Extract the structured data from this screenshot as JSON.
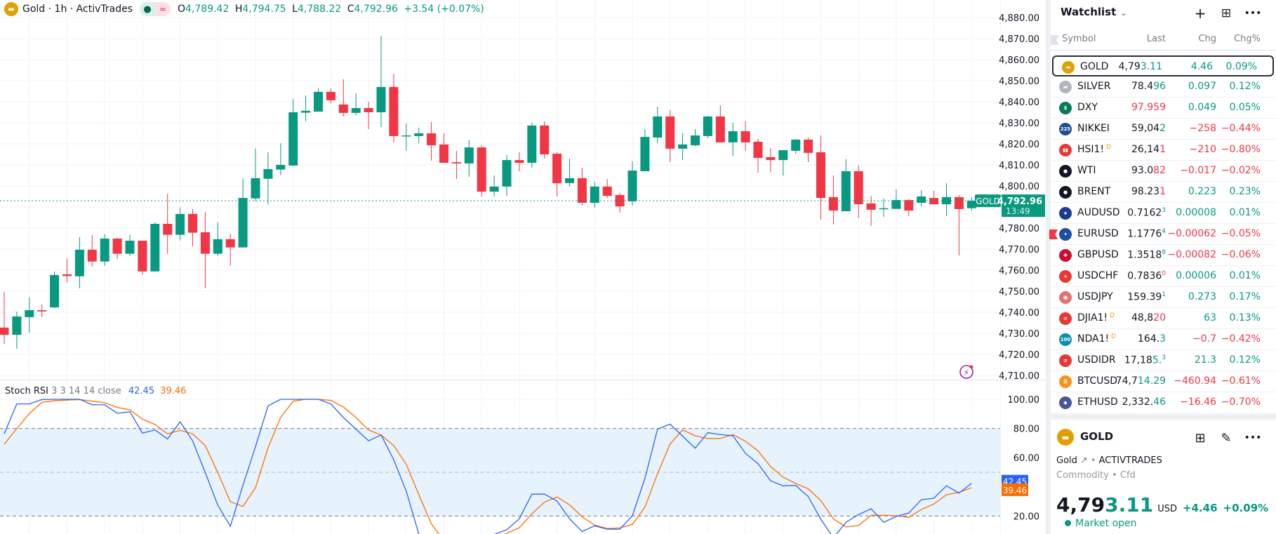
{
  "header": {
    "symbol_title": "Gold · 1h · ActivTrades",
    "status_dot": "●",
    "status_approx": "≈",
    "open_label": "O",
    "open": "4,789.42",
    "high_label": "H",
    "high": "4,794.75",
    "low_label": "L",
    "low": "4,788.22",
    "close_label": "C",
    "close": "4,792.96",
    "change": "+3.54 (+0.07%)"
  },
  "colors": {
    "up": "#089981",
    "down": "#f23645",
    "k_line": "#2962ff",
    "d_line": "#ff6d00",
    "band": "#e3f2fd",
    "gold": "#e0a100"
  },
  "price_axis": {
    "labels": [
      "4,880.00",
      "4,870.00",
      "4,860.00",
      "4,850.00",
      "4,840.00",
      "4,830.00",
      "4,820.00",
      "4,810.00",
      "4,800.00",
      "4,790.00",
      "4,780.00",
      "4,770.00",
      "4,760.00",
      "4,750.00",
      "4,740.00",
      "4,730.00",
      "4,720.00",
      "4,710.00"
    ],
    "hidden_labels": [
      "4,790.00"
    ],
    "current_symbol_tag": "GOLD",
    "current_price": "4,792.96",
    "countdown": "13:49"
  },
  "chart_data": [
    {
      "type": "candlestick",
      "title": "Gold · 1h · ActivTrades",
      "ylim": [
        4710,
        4880
      ],
      "grid": true,
      "last_price": 4792.96,
      "ohlc": [
        [
          4732.7,
          4749.7,
          4725,
          4729.3
        ],
        [
          4729.3,
          4740.3,
          4722.7,
          4738
        ],
        [
          4737.7,
          4747,
          4730.3,
          4741
        ],
        [
          4741,
          4743.7,
          4737.7,
          4740.4
        ],
        [
          4742.3,
          4759.4,
          4742,
          4757.7
        ],
        [
          4758,
          4765.6,
          4754.1,
          4757.2
        ],
        [
          4757.1,
          4775.7,
          4751.4,
          4769.7
        ],
        [
          4769.7,
          4776.7,
          4761.7,
          4764.1
        ],
        [
          4764.1,
          4777,
          4762.1,
          4775
        ],
        [
          4775,
          4775.3,
          4765.4,
          4767.8
        ],
        [
          4767.8,
          4776.7,
          4766.8,
          4774
        ],
        [
          4774,
          4774,
          4757.8,
          4759.4
        ],
        [
          4759.4,
          4782.7,
          4759.4,
          4782
        ],
        [
          4782,
          4796.3,
          4767.8,
          4776.8
        ],
        [
          4776.8,
          4789.7,
          4774.1,
          4786.7
        ],
        [
          4786.7,
          4789,
          4771.4,
          4777.8
        ],
        [
          4778,
          4787.7,
          4751.4,
          4767.8
        ],
        [
          4767.8,
          4782.7,
          4766.8,
          4774.7
        ],
        [
          4774.7,
          4777.3,
          4762.1,
          4770.8
        ],
        [
          4770.8,
          4803.7,
          4770.8,
          4794.3
        ],
        [
          4794.1,
          4817.7,
          4792.8,
          4803.7
        ],
        [
          4803.4,
          4816,
          4791.1,
          4808
        ],
        [
          4807.8,
          4820.3,
          4805.1,
          4810
        ],
        [
          4809.7,
          4841.3,
          4809.4,
          4835
        ],
        [
          4834.8,
          4843,
          4830.7,
          4835.7
        ],
        [
          4835.3,
          4846.3,
          4835.3,
          4844.7
        ],
        [
          4844.7,
          4846.3,
          4839.3,
          4840.7
        ],
        [
          4838.7,
          4850.7,
          4833,
          4834.7
        ],
        [
          4834.7,
          4844,
          4833.7,
          4837
        ],
        [
          4837,
          4840,
          4827,
          4835
        ],
        [
          4835,
          4871.3,
          4828,
          4847
        ],
        [
          4847,
          4853.3,
          4820.7,
          4823.7
        ],
        [
          4823.8,
          4829.7,
          4816.7,
          4824
        ],
        [
          4823.7,
          4827.7,
          4820.3,
          4825
        ],
        [
          4825,
          4830.3,
          4812,
          4819.3
        ],
        [
          4819.7,
          4825,
          4811,
          4811
        ],
        [
          4811.3,
          4816.7,
          4803.3,
          4810.7
        ],
        [
          4810.7,
          4821.7,
          4804.3,
          4818.3
        ],
        [
          4818.3,
          4819.3,
          4795,
          4797.3
        ],
        [
          4797.3,
          4805,
          4795,
          4799.7
        ],
        [
          4799.7,
          4814.7,
          4795.3,
          4812.3
        ],
        [
          4812.3,
          4816,
          4807,
          4811
        ],
        [
          4811,
          4830,
          4808.7,
          4828.7
        ],
        [
          4828.7,
          4830.7,
          4813,
          4815
        ],
        [
          4815.3,
          4816,
          4795,
          4801.3
        ],
        [
          4801.4,
          4813,
          4799.7,
          4803.7
        ],
        [
          4803.7,
          4808.7,
          4790.7,
          4792
        ],
        [
          4792,
          4802,
          4789.7,
          4799.7
        ],
        [
          4799.7,
          4803.3,
          4794.3,
          4795.3
        ],
        [
          4795.7,
          4796.7,
          4787.3,
          4790.3
        ],
        [
          4792.7,
          4811.7,
          4790.7,
          4807.3
        ],
        [
          4807,
          4827,
          4807,
          4823.3
        ],
        [
          4823,
          4837.7,
          4820.3,
          4833
        ],
        [
          4833,
          4836,
          4811.3,
          4817.7
        ],
        [
          4817.7,
          4825,
          4812.3,
          4819.7
        ],
        [
          4819.3,
          4827,
          4819,
          4824
        ],
        [
          4823.7,
          4833.3,
          4822.7,
          4833
        ],
        [
          4833,
          4838.3,
          4820.7,
          4820.7
        ],
        [
          4820.7,
          4830,
          4814.3,
          4826
        ],
        [
          4826,
          4830.7,
          4816.7,
          4820.7
        ],
        [
          4821,
          4822.3,
          4806.3,
          4813.3
        ],
        [
          4813.7,
          4818,
          4806.7,
          4812.3
        ],
        [
          4812.3,
          4817,
          4805,
          4817
        ],
        [
          4816.7,
          4822.3,
          4815.3,
          4822
        ],
        [
          4822,
          4823,
          4811.3,
          4815.7
        ],
        [
          4816,
          4824,
          4784,
          4794.3
        ],
        [
          4794.7,
          4805,
          4781.7,
          4788.3
        ],
        [
          4788,
          4812.7,
          4788,
          4807
        ],
        [
          4807,
          4809.7,
          4784.8,
          4791.3
        ],
        [
          4791.7,
          4795.3,
          4781.1,
          4788.7
        ],
        [
          4789.2,
          4794,
          4785.3,
          4789.4
        ],
        [
          4789.1,
          4798.3,
          4789.1,
          4793.3
        ],
        [
          4793.3,
          4793.7,
          4785.7,
          4788.3
        ],
        [
          4792,
          4798,
          4790.3,
          4795
        ],
        [
          4794.3,
          4797.7,
          4791.3,
          4791.3
        ],
        [
          4791.3,
          4801.3,
          4785.7,
          4794.7
        ],
        [
          4794.7,
          4795.7,
          4767,
          4789
        ],
        [
          4789.42,
          4794.75,
          4788.22,
          4792.96
        ]
      ]
    },
    {
      "type": "line",
      "title": "Stoch RSI 3 3 14 14 close",
      "ylim": [
        0,
        100
      ],
      "levels": [
        80,
        50,
        20
      ],
      "axis_labels": [
        "100.00",
        "80.00",
        "60.00",
        "20.00"
      ],
      "series": [
        {
          "name": "K",
          "last_label": "42.45",
          "values": [
            76.3,
            96.8,
            96.8,
            99.8,
            100,
            100,
            100,
            96.2,
            96.2,
            90.4,
            91.5,
            76.8,
            79,
            72.8,
            84.6,
            71.5,
            49.8,
            27.4,
            13,
            41,
            67.5,
            95.5,
            100,
            100,
            100,
            100,
            96.8,
            87.5,
            79.5,
            71.5,
            75.5,
            58.6,
            37,
            7.7,
            2,
            0,
            0,
            0,
            3,
            7.4,
            10.6,
            18.1,
            35,
            35,
            30.3,
            18.1,
            9.4,
            13.3,
            11,
            11,
            20.2,
            45.8,
            79.5,
            83,
            74.7,
            66.5,
            77.1,
            75.8,
            75,
            63,
            55.9,
            44.1,
            40.7,
            41,
            33.3,
            17.8,
            5,
            15.7,
            21,
            25,
            15.7,
            19.7,
            22.1,
            31.2,
            32.2,
            40.7,
            35.7,
            42.45
          ]
        },
        {
          "name": "D",
          "last_label": "39.46",
          "values": [
            69.1,
            80,
            90.2,
            97.9,
            99,
            99.5,
            99.8,
            98.7,
            97.6,
            94.4,
            92.8,
            86.4,
            82.7,
            76.3,
            78.7,
            76.3,
            68.3,
            49.8,
            29.8,
            26.6,
            39.4,
            66.7,
            87.5,
            98.7,
            100,
            100,
            99.2,
            94.7,
            87.5,
            79,
            75.5,
            68.3,
            55.4,
            34.6,
            14.6,
            3,
            0,
            0,
            1,
            3,
            8.2,
            12,
            21.5,
            29.5,
            33,
            27.7,
            19.4,
            13.8,
            11.4,
            11.9,
            14.3,
            26.1,
            49,
            69.4,
            79,
            75,
            73.1,
            73.1,
            75.8,
            71.2,
            64.6,
            53.9,
            46.6,
            42.3,
            38.6,
            30.6,
            18.1,
            12.5,
            13.5,
            20.5,
            20.5,
            20.2,
            19.1,
            24.5,
            28.2,
            34.6,
            36.2,
            39.46
          ]
        }
      ]
    }
  ],
  "rsi_legend": {
    "name": "Stoch RSI",
    "params": "3 3 14 14 close",
    "k": "42.45",
    "d": "39.46"
  },
  "watchlist": {
    "title": "Watchlist",
    "columns": {
      "symbol": "Symbol",
      "last": "Last",
      "chg": "Chg",
      "chgp": "Chg%"
    },
    "rows": [
      {
        "sym": "GOLD",
        "badge": "",
        "icon": "gold-bars",
        "icon_bg": "#e0a100",
        "icon_text": "▬",
        "last": "4,79",
        "hi": "3.11",
        "sup": "",
        "hic": "g",
        "chg": "4.46",
        "chgp": "0.09%",
        "dir": "g",
        "selected": true
      },
      {
        "sym": "SILVER",
        "badge": "",
        "icon": "silver-bars",
        "icon_bg": "#b2b5be",
        "icon_text": "▬",
        "last": "78.4",
        "hi": "96",
        "sup": "",
        "hic": "g",
        "chg": "0.097",
        "chgp": "0.12%",
        "dir": "g"
      },
      {
        "sym": "DXY",
        "badge": "",
        "icon": "dollar",
        "icon_bg": "#0a7a5f",
        "icon_text": "$",
        "last": "",
        "hi": "97.959",
        "sup": "",
        "hic": "r",
        "chg": "0.049",
        "chgp": "0.05%",
        "dir": "g"
      },
      {
        "sym": "NIKKEI",
        "badge": "",
        "icon": "nikkei-225",
        "icon_bg": "#1e4d8c",
        "icon_text": "225",
        "last": "59,04",
        "hi": "2",
        "sup": "",
        "hic": "g",
        "chg": "−258",
        "chgp": "−0.44%",
        "dir": "r"
      },
      {
        "sym": "HSI1!",
        "badge": "D",
        "icon": "hsi",
        "icon_bg": "#e53935",
        "icon_text": "▮▮",
        "last": "26,14",
        "hi": "1",
        "sup": "",
        "hic": "r",
        "chg": "−210",
        "chgp": "−0.80%",
        "dir": "r"
      },
      {
        "sym": "WTI",
        "badge": "",
        "icon": "oil-drop",
        "icon_bg": "#131722",
        "icon_text": "●",
        "last": "93.0",
        "hi": "82",
        "sup": "",
        "hic": "r",
        "chg": "−0.017",
        "chgp": "−0.02%",
        "dir": "r"
      },
      {
        "sym": "BRENT",
        "badge": "",
        "icon": "oil-drop",
        "icon_bg": "#131722",
        "icon_text": "●",
        "last": "98.23",
        "hi": "1",
        "sup": "",
        "hic": "r",
        "chg": "0.223",
        "chgp": "0.23%",
        "dir": "g"
      },
      {
        "sym": "AUDUSD",
        "badge": "",
        "icon": "flag-au-us",
        "icon_bg": "#1a3b8f",
        "icon_text": "★",
        "last": "0.7162",
        "hi": "",
        "sup": "3",
        "hic": "g",
        "chg": "0.00008",
        "chgp": "0.01%",
        "dir": "g"
      },
      {
        "sym": "EURUSD",
        "badge": "",
        "icon": "flag-eu-us",
        "icon_bg": "#1e4fa3",
        "icon_text": "✦",
        "last": "1.1776",
        "hi": "",
        "sup": "4",
        "hic": "g",
        "chg": "−0.00062",
        "chgp": "−0.05%",
        "dir": "r",
        "flagged": true
      },
      {
        "sym": "GBPUSD",
        "badge": "",
        "icon": "flag-gb-us",
        "icon_bg": "#c8102e",
        "icon_text": "✚",
        "last": "1.3518",
        "hi": "",
        "sup": "8",
        "hic": "g",
        "chg": "−0.00082",
        "chgp": "−0.06%",
        "dir": "r"
      },
      {
        "sym": "USDCHF",
        "badge": "",
        "icon": "flag-us-ch",
        "icon_bg": "#e53935",
        "icon_text": "+",
        "last": "0.7836",
        "hi": "",
        "sup": "0",
        "hic": "r",
        "chg": "0.00006",
        "chgp": "0.01%",
        "dir": "g"
      },
      {
        "sym": "USDJPY",
        "badge": "",
        "icon": "flag-us-jp",
        "icon_bg": "#e57373",
        "icon_text": "●",
        "last": "159.39",
        "hi": "",
        "sup": "1",
        "hic": "g",
        "chg": "0.273",
        "chgp": "0.17%",
        "dir": "g"
      },
      {
        "sym": "DJIA1!",
        "badge": "D",
        "icon": "flag-us",
        "icon_bg": "#e53935",
        "icon_text": "≡",
        "last": "48,8",
        "hi": "20",
        "sup": "",
        "hic": "r",
        "chg": "63",
        "chgp": "0.13%",
        "dir": "g"
      },
      {
        "sym": "NDA1!",
        "badge": "D",
        "icon": "nasdaq-100",
        "icon_bg": "#0a8fb0",
        "icon_text": "100",
        "last": "164.",
        "hi": "3",
        "sup": "",
        "hic": "g",
        "chg": "−0.7",
        "chgp": "−0.42%",
        "dir": "r"
      },
      {
        "sym": "USDIDR",
        "badge": "",
        "icon": "flag-us-id",
        "icon_bg": "#e53935",
        "icon_text": "≡",
        "last": "17,18",
        "hi": "5.",
        "sup": "3",
        "hic": "g",
        "chg": "21.3",
        "chgp": "0.12%",
        "dir": "g"
      },
      {
        "sym": "BTCUSD",
        "badge": "",
        "icon": "bitcoin",
        "icon_bg": "#f7931a",
        "icon_text": "₿",
        "last": "74,7",
        "hi": "14.29",
        "sup": "",
        "hic": "g",
        "chg": "−460.94",
        "chgp": "−0.61%",
        "dir": "r"
      },
      {
        "sym": "ETHUSD",
        "badge": "",
        "icon": "ethereum",
        "icon_bg": "#4a5596",
        "icon_text": "◆",
        "last": "2,332.",
        "hi": "46",
        "sup": "",
        "hic": "g",
        "chg": "−16.46",
        "chgp": "−0.70%",
        "dir": "r"
      }
    ]
  },
  "details": {
    "symbol": "GOLD",
    "name": "Gold",
    "exchange": "ACTIVTRADES",
    "type": "Commodity",
    "subtype": "Cfd",
    "price_main": "4,79",
    "price_hi": "3.11",
    "currency": "USD",
    "change": "+4.46",
    "change_pct": "+0.09%",
    "market_status": "Market open"
  }
}
